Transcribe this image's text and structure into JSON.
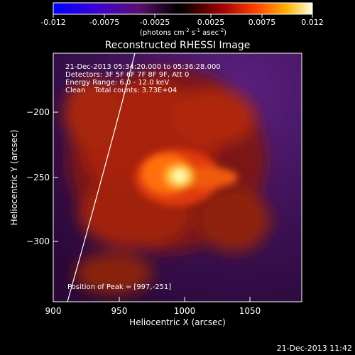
{
  "colorbar": {
    "ticks": [
      "-0.012",
      "-0.0075",
      "-0.0025",
      "0.0025",
      "0.0075",
      "0.012"
    ],
    "units_html": "(photons cm<tspan baseline-shift=\"super\" font-size=\"7\">-2</tspan> s<tspan baseline-shift=\"super\" font-size=\"7\">-1</tspan> asec<tspan baseline-shift=\"super\" font-size=\"7\">-2</tspan>)"
  },
  "plot": {
    "title": "Reconstructed RHESSI Image",
    "xlabel": "Heliocentric X (arcsec)",
    "ylabel": "Heliocentric Y (arcsec)",
    "x_ticks": [
      "900",
      "950",
      "1000",
      "1050"
    ],
    "y_ticks": [
      "−200",
      "−250",
      "−300"
    ],
    "annotations": [
      "21-Dec-2013 05:34:20.000 to 05:36:28.000",
      "Detectors: 3F 5F 6F 7F 8F 9F, Att 0",
      "Energy Range: 6.0 - 12.0 keV",
      "Clean    Total counts: 3.73E+04"
    ],
    "peak": "Position of Peak = [997,-251]"
  },
  "footer": {
    "timestamp": "21-Dec-2013 11:42"
  }
}
